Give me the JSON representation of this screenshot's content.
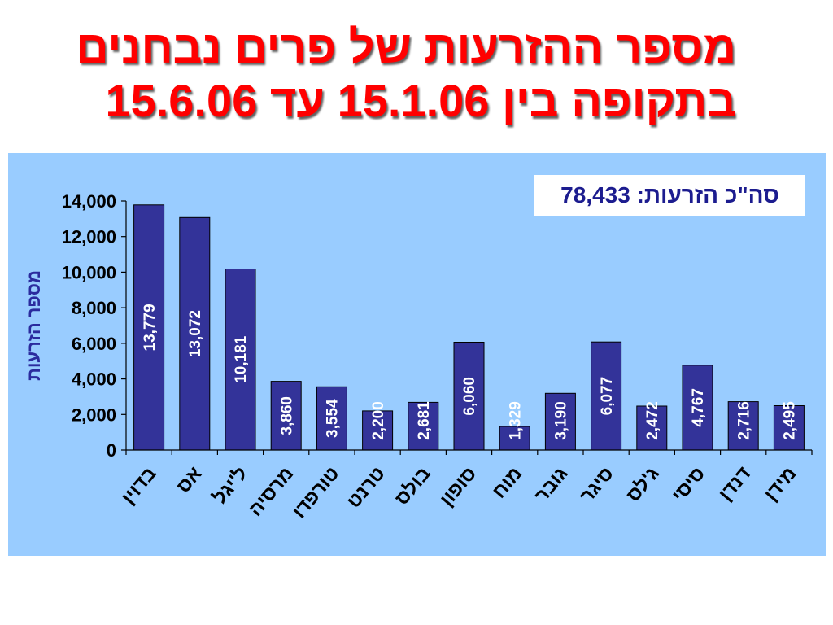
{
  "slide": {
    "title_line1": "מספר ההזרעות של פרים נבחנים",
    "title_line2": "בתקופה בין 15.1.06 עד 15.6.06"
  },
  "total_box": {
    "label": "סה\"כ הזרעות:",
    "value": "78,433"
  },
  "colors": {
    "background": "#ffffff",
    "title": "#ff0000",
    "panel": "#99ccff",
    "bar": "#333399",
    "bar_label": "#ffffff",
    "axis_title": "#2b2b9e",
    "total_text": "#1c1c8f"
  },
  "chart_data": {
    "type": "bar",
    "ylabel": "מספר הזרעות",
    "categories": [
      "בדוין",
      "אס",
      "ל'יגל",
      "מרסיה",
      "טורפדו",
      "טרנט",
      "בולס",
      "סופון",
      "מוח",
      "גובר",
      "סיגר",
      "ג'לס",
      "סיסי",
      "דנדן",
      "מידן"
    ],
    "values": [
      13779,
      13072,
      10181,
      3860,
      3554,
      2200,
      2681,
      6060,
      1329,
      3190,
      6077,
      2472,
      4767,
      2716,
      2495
    ],
    "data_labels": [
      "13,779",
      "13,072",
      "10,181",
      "3,860",
      "3,554",
      "2,200",
      "2,681",
      "6,060",
      "1,329",
      "3,190",
      "6,077",
      "2,472",
      "4,767",
      "2,716",
      "2,495"
    ],
    "ylim": [
      0,
      14000
    ],
    "yticks": [
      0,
      2000,
      4000,
      6000,
      8000,
      10000,
      12000,
      14000
    ],
    "ytick_labels": [
      "0",
      "2,000",
      "4,000",
      "6,000",
      "8,000",
      "10,000",
      "12,000",
      "14,000"
    ],
    "grid": false,
    "legend": "none"
  }
}
